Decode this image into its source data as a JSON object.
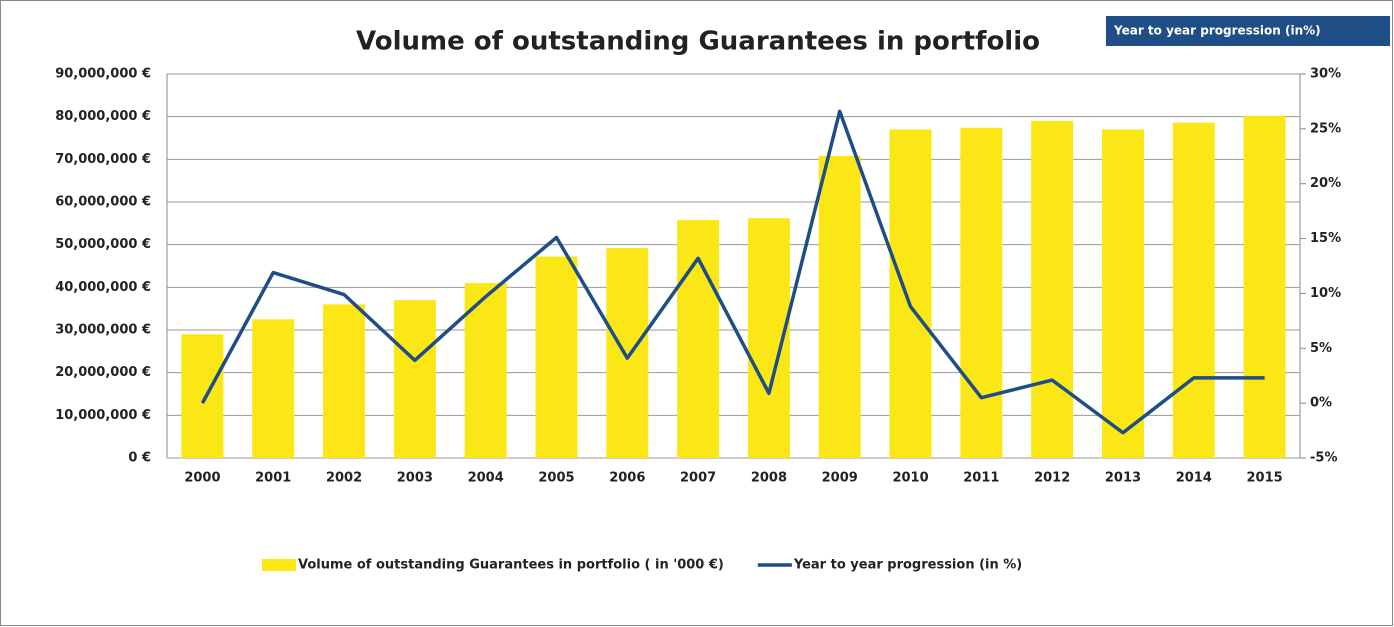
{
  "chart_data": {
    "type": "bar_line",
    "title": "Volume of outstanding Guarantees in portfolio",
    "annotation": "Year to year progression (in%)",
    "categories": [
      "2000",
      "2001",
      "2002",
      "2003",
      "2004",
      "2005",
      "2006",
      "2007",
      "2008",
      "2009",
      "2010",
      "2011",
      "2012",
      "2013",
      "2014",
      "2015"
    ],
    "series": [
      {
        "name": "Volume of outstanding Guarantees in portfolio ( in '000 €)",
        "type": "bar",
        "color": "#fbe616",
        "values": [
          29000000,
          32500000,
          36000000,
          37000000,
          41000000,
          47200000,
          49200000,
          55800000,
          56200000,
          70800000,
          77000000,
          77400000,
          79000000,
          77000000,
          78600000,
          80200000
        ]
      },
      {
        "name": "Year to year progression (in %)",
        "type": "line",
        "color": "#1f4e87",
        "axis": "y2",
        "values": [
          0,
          11.9,
          9.9,
          3.9,
          9.7,
          15.1,
          4.1,
          13.2,
          0.9,
          26.6,
          8.8,
          0.5,
          2.1,
          -2.7,
          2.3,
          2.3
        ]
      }
    ],
    "ylim": [
      0,
      90000000
    ],
    "yticks": [
      {
        "value": 0,
        "label": "0 €"
      },
      {
        "value": 10000000,
        "label": "10,000,000 €"
      },
      {
        "value": 20000000,
        "label": "20,000,000 €"
      },
      {
        "value": 30000000,
        "label": "30,000,000 €"
      },
      {
        "value": 40000000,
        "label": "40,000,000 €"
      },
      {
        "value": 50000000,
        "label": "50,000,000 €"
      },
      {
        "value": 60000000,
        "label": "60,000,000 €"
      },
      {
        "value": 70000000,
        "label": "70,000,000 €"
      },
      {
        "value": 80000000,
        "label": "80,000,000 €"
      },
      {
        "value": 90000000,
        "label": "90,000,000 €"
      }
    ],
    "y2lim": [
      -5,
      30
    ],
    "y2ticks": [
      {
        "value": -5,
        "label": "-5%"
      },
      {
        "value": 0,
        "label": "0%"
      },
      {
        "value": 5,
        "label": "5%"
      },
      {
        "value": 10,
        "label": "10%"
      },
      {
        "value": 15,
        "label": "15%"
      },
      {
        "value": 20,
        "label": "20%"
      },
      {
        "value": 25,
        "label": "25%"
      },
      {
        "value": 30,
        "label": "30%"
      }
    ],
    "grid": true,
    "legend": "bottom"
  }
}
